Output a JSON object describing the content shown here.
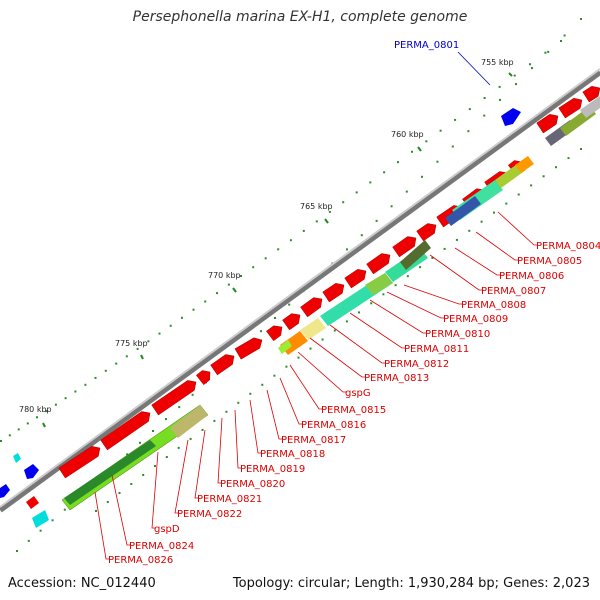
{
  "map": {
    "title": "Persephonella marina EX-H1, complete genome",
    "accession": "Accession: NC_012440",
    "summary": "Topology: circular; Length: 1,930,284 bp; Genes: 2,023"
  },
  "ticks": [
    "755 kbp",
    "760 kbp",
    "765 kbp",
    "770 kbp",
    "775 kbp",
    "780 kbp"
  ],
  "labels": {
    "blue": [
      "PERMA_0801"
    ],
    "red": [
      "PERMA_0804",
      "PERMA_0805",
      "PERMA_0806",
      "PERMA_0807",
      "PERMA_0808",
      "PERMA_0809",
      "PERMA_0810",
      "PERMA_0811",
      "PERMA_0812",
      "PERMA_0813",
      "gspG",
      "PERMA_0815",
      "PERMA_0816",
      "PERMA_0817",
      "PERMA_0818",
      "PERMA_0819",
      "PERMA_0820",
      "PERMA_0821",
      "PERMA_0822",
      "gspD",
      "PERMA_0824",
      "PERMA_0826"
    ]
  },
  "colors": {
    "gene_forward": "#ee0000",
    "label_red": "#dd0000",
    "label_blue": "#0000cc",
    "backbone": "#999999",
    "tick_mark": "#228822",
    "dot": "#2e8b2e"
  }
}
